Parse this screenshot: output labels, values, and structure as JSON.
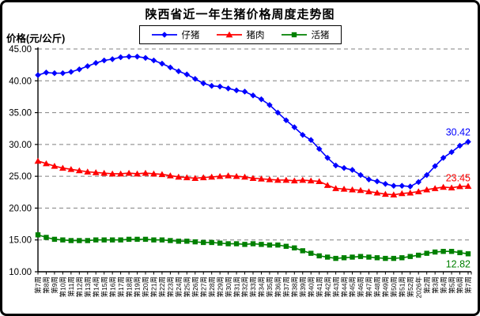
{
  "chart_data": {
    "type": "line",
    "title": "陕西省近一年生猪价格周度走势图",
    "ylabel": "价格(元/公斤)",
    "xlabel": "",
    "ylim": [
      10,
      45
    ],
    "ytick_step": 5,
    "ytick_labels": [
      "45.00",
      "40.00",
      "35.00",
      "30.00",
      "25.00",
      "20.00",
      "15.00",
      "10.00"
    ],
    "grid": true,
    "gridline_color": "#808080",
    "axis_color": "#000000",
    "legend_position": "top-center",
    "categories": [
      "第7周",
      "第8周",
      "第9周",
      "第10周",
      "第11周",
      "第12周",
      "第13周",
      "第14周",
      "第15周",
      "第16周",
      "第17周",
      "第18周",
      "第19周",
      "第20周",
      "第21周",
      "第22周",
      "第23周",
      "第24周",
      "第25周",
      "第26周",
      "第27周",
      "第28周",
      "第29周",
      "第30周",
      "第31周",
      "第32周",
      "第33周",
      "第34周",
      "第35周",
      "第36周",
      "第37周",
      "第38周",
      "第39周",
      "第40周",
      "第41周",
      "第42周",
      "第43周",
      "第44周",
      "第45周",
      "第46周",
      "第47周",
      "第48周",
      "第49周",
      "第50周",
      "第51周",
      "第52周",
      "2026年",
      "第2周",
      "第3周",
      "第4周",
      "第5周",
      "第6周",
      "第7周"
    ],
    "series": [
      {
        "id": "piglet",
        "name": "仔猪",
        "color": "#0000ff",
        "marker": "diamond",
        "end_label": "30.42",
        "values": [
          40.9,
          41.3,
          41.2,
          41.2,
          41.4,
          41.8,
          42.3,
          42.8,
          43.2,
          43.4,
          43.7,
          43.8,
          43.8,
          43.6,
          43.2,
          42.7,
          42.1,
          41.5,
          41.0,
          40.3,
          39.6,
          39.2,
          39.1,
          38.8,
          38.5,
          38.3,
          37.7,
          37.1,
          36.2,
          35.0,
          33.8,
          32.7,
          31.5,
          30.7,
          29.3,
          27.9,
          26.7,
          26.3,
          26.0,
          25.2,
          24.5,
          24.2,
          23.8,
          23.5,
          23.5,
          23.4,
          24.1,
          25.2,
          26.6,
          27.9,
          28.8,
          29.8,
          30.42
        ]
      },
      {
        "id": "pork",
        "name": "猪肉",
        "color": "#ff0000",
        "marker": "triangle",
        "end_label": "23.45",
        "values": [
          27.4,
          27.0,
          26.6,
          26.3,
          26.1,
          25.9,
          25.7,
          25.6,
          25.5,
          25.4,
          25.4,
          25.5,
          25.4,
          25.5,
          25.4,
          25.3,
          25.1,
          24.9,
          24.8,
          24.7,
          24.8,
          24.9,
          25.0,
          25.1,
          25.0,
          24.9,
          24.7,
          24.6,
          24.5,
          24.4,
          24.4,
          24.3,
          24.4,
          24.3,
          24.2,
          23.6,
          23.1,
          23.0,
          22.9,
          22.8,
          22.6,
          22.4,
          22.2,
          22.1,
          22.3,
          22.4,
          22.6,
          22.9,
          23.1,
          23.3,
          23.2,
          23.4,
          23.45
        ]
      },
      {
        "id": "live-pig",
        "name": "活猪",
        "color": "#008000",
        "marker": "square",
        "end_label": "12.82",
        "values": [
          15.8,
          15.4,
          15.1,
          15.0,
          14.9,
          14.9,
          14.9,
          15.0,
          15.0,
          15.0,
          15.0,
          15.1,
          15.1,
          15.1,
          15.0,
          15.0,
          14.9,
          14.8,
          14.8,
          14.7,
          14.6,
          14.6,
          14.5,
          14.4,
          14.4,
          14.3,
          14.4,
          14.3,
          14.2,
          14.2,
          14.0,
          13.75,
          13.3,
          12.9,
          12.5,
          12.3,
          12.1,
          12.2,
          12.3,
          12.4,
          12.3,
          12.2,
          12.1,
          12.1,
          12.2,
          12.4,
          12.6,
          12.9,
          13.1,
          13.2,
          13.2,
          13.0,
          12.82
        ]
      }
    ]
  }
}
